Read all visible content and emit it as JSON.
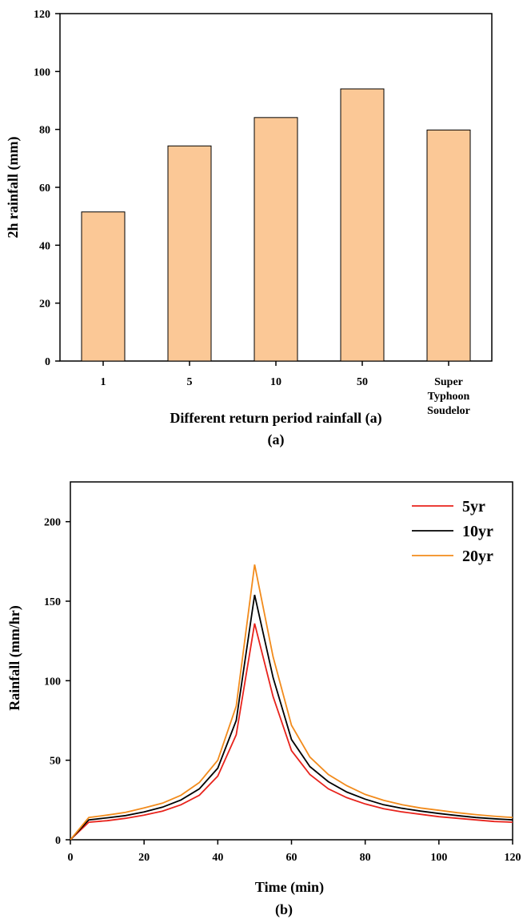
{
  "chart_data": [
    {
      "type": "bar",
      "panel_label": "(a)",
      "categories": [
        "1",
        "5",
        "10",
        "50",
        "Super Typhoon Soudelor"
      ],
      "category_lines": [
        [
          "1"
        ],
        [
          "5"
        ],
        [
          "10"
        ],
        [
          "50"
        ],
        [
          "Super",
          "Typhoon",
          "Soudelor"
        ]
      ],
      "values": [
        51.5,
        74.3,
        84.1,
        94.0,
        79.8
      ],
      "xlabel": "Different return period rainfall (a)",
      "ylabel": "2h rainfall (mm)",
      "ylim": [
        0,
        120
      ],
      "yticks": [
        0,
        20,
        40,
        60,
        80,
        100,
        120
      ],
      "bar_color": "#FBC896",
      "grid": false
    },
    {
      "type": "line",
      "panel_label": "(b)",
      "x": [
        0,
        5,
        10,
        15,
        20,
        25,
        30,
        35,
        40,
        45,
        50,
        55,
        60,
        65,
        70,
        75,
        80,
        85,
        90,
        95,
        100,
        105,
        110,
        115,
        120
      ],
      "series": [
        {
          "name": "5yr",
          "color": "#E8231C",
          "values": [
            0,
            11,
            12,
            13.5,
            15.5,
            18,
            22,
            28,
            40,
            66,
            136,
            90,
            56,
            41,
            32,
            26.5,
            22.5,
            19.5,
            17.5,
            16,
            14.5,
            13.5,
            12.5,
            11.5,
            11
          ]
        },
        {
          "name": "10yr",
          "color": "#000000",
          "values": [
            0,
            12.5,
            13.8,
            15.2,
            17.5,
            20.5,
            25,
            32,
            45,
            75,
            154,
            102,
            63,
            46,
            36.5,
            30,
            25.5,
            22,
            19.8,
            18,
            16.5,
            15.2,
            14,
            13.2,
            12.5
          ]
        },
        {
          "name": "20yr",
          "color": "#F28B1C",
          "values": [
            0,
            14,
            15.5,
            17.2,
            20,
            23,
            28,
            36,
            50,
            84,
            173,
            115,
            72,
            52,
            41,
            34,
            28.5,
            24.8,
            22,
            20,
            18.5,
            17,
            15.8,
            14.8,
            14
          ]
        }
      ],
      "xlabel": "Time (min)",
      "ylabel": "Rainfall (mm/hr)",
      "xlim": [
        0,
        120
      ],
      "ylim": [
        0,
        225
      ],
      "xticks": [
        0,
        20,
        40,
        60,
        80,
        100,
        120
      ],
      "yticks": [
        0,
        50,
        100,
        150,
        200
      ],
      "legend_position": "top-right",
      "grid": false
    }
  ]
}
